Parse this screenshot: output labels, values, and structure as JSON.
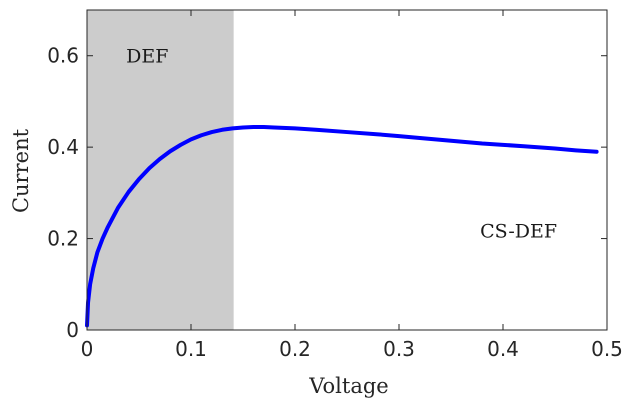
{
  "chart_data": {
    "type": "line",
    "xlabel": "Voltage",
    "ylabel": "Current",
    "xlim": [
      0,
      0.5
    ],
    "ylim": [
      0,
      0.7
    ],
    "xticks": [
      0,
      0.1,
      0.2,
      0.3,
      0.4,
      0.5
    ],
    "xtick_labels": [
      "0",
      "0.1",
      "0.2",
      "0.3",
      "0.4",
      "0.5"
    ],
    "yticks": [
      0,
      0.2,
      0.4,
      0.6
    ],
    "ytick_labels": [
      "0",
      "0.2",
      "0.4",
      "0.6"
    ],
    "grid": false,
    "shaded_region": {
      "x_range": [
        0,
        0.141
      ],
      "color": "#cccccc"
    },
    "annotations": [
      {
        "text": "DEF",
        "x": 0.058,
        "y": 0.585
      },
      {
        "text": "CS-DEF",
        "x": 0.415,
        "y": 0.202
      }
    ],
    "series": [
      {
        "color": "#0000ff",
        "x": [
          0,
          0.001,
          0.003,
          0.006,
          0.01,
          0.015,
          0.02,
          0.03,
          0.04,
          0.05,
          0.06,
          0.07,
          0.08,
          0.09,
          0.1,
          0.11,
          0.12,
          0.13,
          0.14,
          0.15,
          0.16,
          0.17,
          0.18,
          0.2,
          0.22,
          0.25,
          0.28,
          0.3,
          0.32,
          0.35,
          0.38,
          0.4,
          0.42,
          0.45,
          0.47,
          0.49
        ],
        "y": [
          0.01,
          0.06,
          0.1,
          0.135,
          0.17,
          0.2,
          0.225,
          0.268,
          0.302,
          0.33,
          0.354,
          0.374,
          0.391,
          0.405,
          0.417,
          0.426,
          0.433,
          0.438,
          0.441,
          0.443,
          0.444,
          0.444,
          0.443,
          0.441,
          0.438,
          0.433,
          0.428,
          0.424,
          0.42,
          0.414,
          0.408,
          0.405,
          0.402,
          0.397,
          0.393,
          0.39
        ]
      }
    ]
  }
}
